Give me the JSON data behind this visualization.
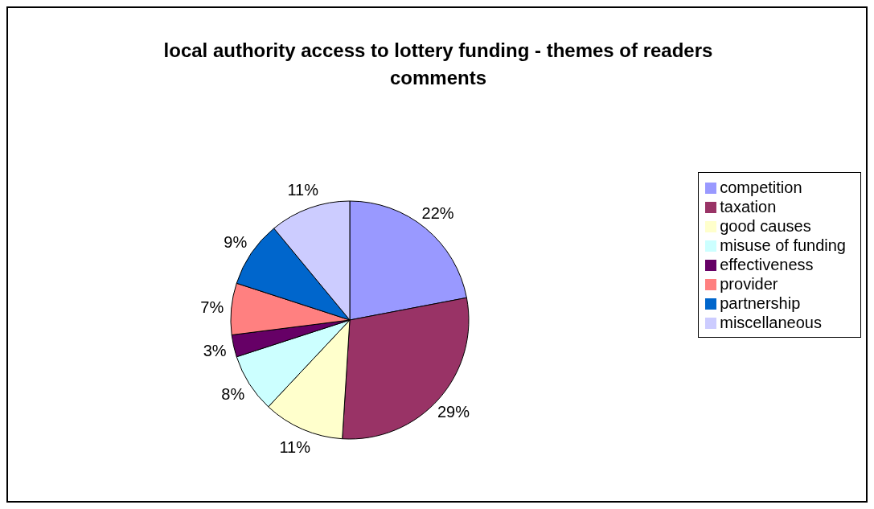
{
  "chart_data": {
    "type": "pie",
    "title": "local authority access to lottery funding - themes of readers comments",
    "categories": [
      "competition",
      "taxation",
      "good causes",
      "misuse of funding",
      "effectiveness",
      "provider",
      "partnership",
      "miscellaneous"
    ],
    "values": [
      22,
      29,
      11,
      8,
      3,
      7,
      9,
      11
    ],
    "colors": [
      "#9999ff",
      "#993366",
      "#ffffcc",
      "#ccffff",
      "#660066",
      "#ff8080",
      "#0066cc",
      "#ccccff"
    ],
    "value_labels": [
      "22%",
      "29%",
      "11%",
      "8%",
      "3%",
      "7%",
      "9%",
      "11%"
    ],
    "legend": "right"
  }
}
